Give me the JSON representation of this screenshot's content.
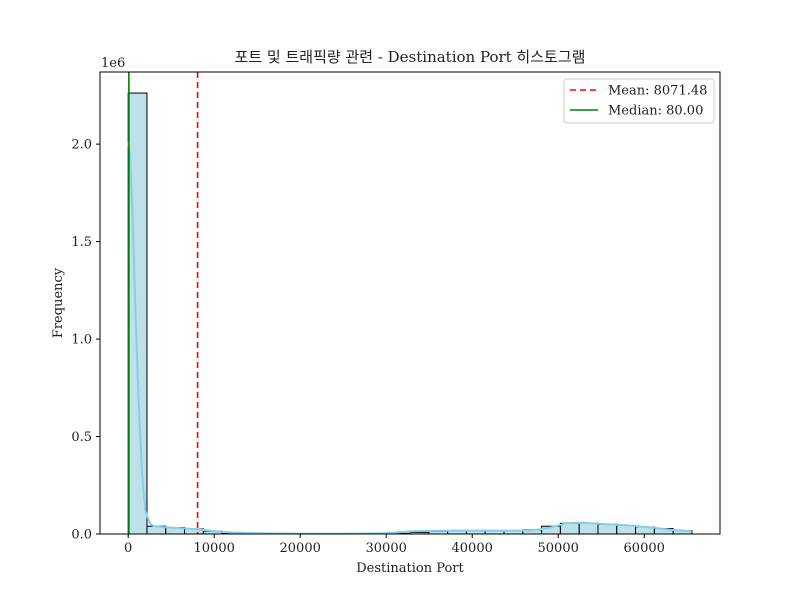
{
  "chart_data": {
    "type": "bar",
    "title": "포트 및 트래픽량 관련 - Destination Port 히스토그램",
    "xlabel": "Destination Port",
    "ylabel": "Frequency",
    "y_offset_label": "1e6",
    "xlim": [
      -3277,
      68812
    ],
    "ylim": [
      0,
      2370000
    ],
    "x_ticks": [
      0,
      10000,
      20000,
      30000,
      40000,
      50000,
      60000
    ],
    "x_tick_labels": [
      "0",
      "10000",
      "20000",
      "30000",
      "40000",
      "50000",
      "60000"
    ],
    "y_ticks": [
      0,
      500000,
      1000000,
      1500000,
      2000000
    ],
    "y_tick_labels": [
      "0.0",
      "0.5",
      "1.0",
      "1.5",
      "2.0"
    ],
    "bin_width": 2185,
    "bins_start": [
      0,
      2185,
      4370,
      6555,
      8740,
      10925,
      13110,
      15295,
      17480,
      19665,
      21850,
      24035,
      26220,
      28405,
      30590,
      32775,
      34960,
      37145,
      39330,
      41515,
      43700,
      45885,
      48070,
      50255,
      52440,
      54625,
      56810,
      58995,
      61180,
      63365
    ],
    "values": [
      2262000,
      40000,
      33000,
      26000,
      14000,
      3000,
      2000,
      2000,
      2000,
      1500,
      1500,
      1500,
      1500,
      1500,
      3000,
      8000,
      14000,
      17000,
      18000,
      17000,
      17000,
      21000,
      40000,
      55000,
      56000,
      50000,
      44000,
      36000,
      28000,
      18000
    ],
    "kde": {
      "x": [
        0,
        200,
        500,
        800,
        1200,
        1600,
        2000,
        2500,
        3000,
        4000,
        6000,
        8000,
        10000,
        12000,
        15000,
        20000,
        25000,
        30000,
        33000,
        36000,
        40000,
        44000,
        47000,
        49000,
        51000,
        53000,
        55000,
        58000,
        61000,
        63000,
        65535
      ],
      "y": [
        2010000,
        1950000,
        1650000,
        1200000,
        700000,
        320000,
        120000,
        55000,
        40000,
        35000,
        30000,
        24000,
        15000,
        8000,
        4000,
        2000,
        2000,
        4000,
        14000,
        17000,
        18000,
        17000,
        18000,
        32000,
        56000,
        58000,
        52000,
        44000,
        33000,
        22000,
        14000
      ]
    },
    "mean": {
      "value": 8071.48,
      "label": "Mean: 8071.48",
      "color": "#ff0000"
    },
    "median": {
      "value": 80.0,
      "label": "Median: 80.00",
      "color": "#008000"
    },
    "bar_color": "#add8e6",
    "kde_color": "#87ceeb",
    "legend_location": "upper right",
    "grid": false
  }
}
